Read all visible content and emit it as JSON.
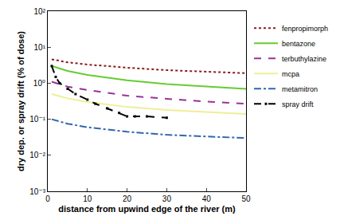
{
  "chart_data": {
    "type": "line",
    "xlabel": "distance from upwind edge of the river (m)",
    "ylabel": "dry dep. or spray drift (% of dose)",
    "log": "y",
    "grid": false,
    "legend": "right",
    "xlim": [
      0,
      50
    ],
    "xticks": [
      0,
      10,
      20,
      30,
      40,
      50
    ],
    "ylim": [
      0.001,
      100
    ],
    "yticks": [
      {
        "value": 0.001,
        "label": "10⁻³"
      },
      {
        "value": 0.01,
        "label": "10⁻²"
      },
      {
        "value": 0.1,
        "label": "10⁻¹"
      },
      {
        "value": 1,
        "label": "10⁰"
      },
      {
        "value": 10,
        "label": "10¹"
      },
      {
        "value": 100,
        "label": "10²"
      }
    ],
    "series": [
      {
        "name": "fenpropimorph",
        "color": "#8b1a1a",
        "line_style": "dotted",
        "x": [
          1,
          5,
          10,
          20,
          30,
          40,
          50
        ],
        "values": [
          4.6,
          3.8,
          3.3,
          2.7,
          2.3,
          2.1,
          1.9
        ]
      },
      {
        "name": "bentazone",
        "color": "#66cc33",
        "line_style": "solid",
        "x": [
          1,
          5,
          10,
          20,
          30,
          40,
          50
        ],
        "values": [
          3.0,
          2.2,
          1.7,
          1.2,
          0.95,
          0.8,
          0.7
        ]
      },
      {
        "name": "terbuthylazine",
        "color": "#993399",
        "line_style": "dashed",
        "x": [
          1,
          5,
          10,
          20,
          30,
          40,
          50
        ],
        "values": [
          1.1,
          0.8,
          0.65,
          0.45,
          0.37,
          0.31,
          0.27
        ]
      },
      {
        "name": "mcpa",
        "color": "#eeee99",
        "line_style": "solid",
        "x": [
          1,
          5,
          10,
          20,
          30,
          40,
          50
        ],
        "values": [
          0.5,
          0.38,
          0.3,
          0.22,
          0.18,
          0.16,
          0.14
        ]
      },
      {
        "name": "metamitron",
        "color": "#3366aa",
        "line_style": "dashdot",
        "x": [
          1,
          5,
          10,
          20,
          30,
          40,
          50
        ],
        "values": [
          0.1,
          0.075,
          0.06,
          0.045,
          0.037,
          0.033,
          0.03
        ]
      },
      {
        "name": "spray drift",
        "color": "#000000",
        "line_style": "dashed",
        "marker": "square",
        "x": [
          1,
          2,
          3,
          5,
          7,
          10,
          12,
          15,
          18,
          20,
          22,
          25,
          30
        ],
        "values": [
          3.0,
          1.5,
          1.0,
          0.7,
          0.5,
          0.35,
          0.27,
          0.2,
          0.15,
          0.12,
          0.12,
          0.12,
          0.11
        ]
      }
    ]
  }
}
